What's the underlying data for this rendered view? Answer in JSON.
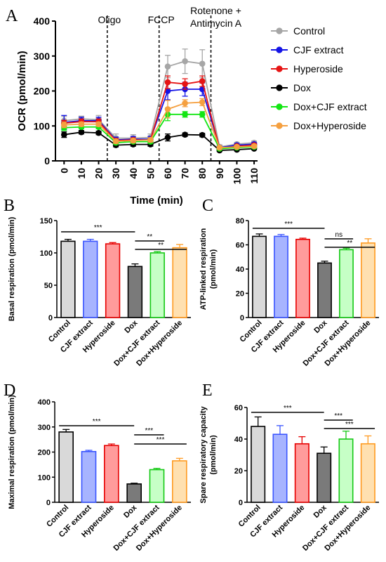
{
  "colors": {
    "Control": "#a6a6a6",
    "CJF extract": "#1414e6",
    "Hyperoside": "#e61414",
    "Dox": "#000000",
    "Dox+CJF extract": "#14e614",
    "Dox+Hyperoside": "#f5a040"
  },
  "bar_colors": {
    "fill": [
      "#d9d9d9",
      "#a7b4ff",
      "#ff9b9b",
      "#7a7a7a",
      "#c6ffc6",
      "#ffe0b0"
    ],
    "edge": [
      "#000000",
      "#3a55ff",
      "#e60000",
      "#000000",
      "#14c814",
      "#ff9a20"
    ]
  },
  "chart_data": [
    {
      "panel": "A",
      "type": "line",
      "xlabel": "Time (min)",
      "ylabel": "OCR (pmol/min)",
      "x": [
        0,
        10,
        20,
        30,
        40,
        50,
        60,
        70,
        80,
        90,
        100,
        110
      ],
      "xticks": [
        "0",
        "10",
        "20",
        "30",
        "40",
        "50",
        "60",
        "70",
        "80",
        "90",
        "100",
        "110"
      ],
      "ylim": [
        0,
        400
      ],
      "yticks": [
        "0",
        "100",
        "200",
        "300",
        "400"
      ],
      "annotations": [
        {
          "text": "Oligo",
          "x": 25
        },
        {
          "text": "FCCP",
          "x": 55
        },
        {
          "text": "Rotenone +",
          "x": 85
        },
        {
          "text": "Antimycin A",
          "x": 85
        }
      ],
      "legend_position": "right",
      "series": [
        {
          "name": "Control",
          "values": [
            115,
            120,
            118,
            65,
            65,
            67,
            270,
            285,
            278,
            40,
            48,
            52
          ],
          "errors": [
            12,
            8,
            12,
            12,
            10,
            10,
            32,
            35,
            40,
            6,
            5,
            5
          ]
        },
        {
          "name": "CJF extract",
          "values": [
            110,
            115,
            115,
            60,
            62,
            62,
            200,
            205,
            205,
            38,
            45,
            48
          ],
          "errors": [
            20,
            10,
            10,
            8,
            8,
            8,
            25,
            20,
            18,
            5,
            4,
            4
          ]
        },
        {
          "name": "Hyperoside",
          "values": [
            108,
            112,
            112,
            58,
            60,
            60,
            225,
            220,
            228,
            35,
            42,
            45
          ],
          "errors": [
            8,
            8,
            8,
            6,
            6,
            6,
            18,
            15,
            15,
            4,
            4,
            4
          ]
        },
        {
          "name": "Dox",
          "values": [
            75,
            82,
            80,
            45,
            47,
            47,
            67,
            75,
            74,
            30,
            32,
            35
          ],
          "errors": [
            8,
            5,
            5,
            5,
            5,
            5,
            10,
            5,
            5,
            3,
            3,
            3
          ]
        },
        {
          "name": "Dox+CJF extract",
          "values": [
            95,
            97,
            97,
            52,
            55,
            55,
            133,
            133,
            133,
            35,
            38,
            40
          ],
          "errors": [
            8,
            5,
            5,
            5,
            5,
            5,
            18,
            8,
            8,
            4,
            4,
            4
          ]
        },
        {
          "name": "Dox+Hyperoside",
          "values": [
            103,
            105,
            105,
            56,
            58,
            60,
            148,
            165,
            168,
            38,
            40,
            42
          ],
          "errors": [
            8,
            6,
            6,
            6,
            6,
            6,
            25,
            10,
            10,
            4,
            4,
            4
          ]
        }
      ]
    },
    {
      "panel": "B",
      "type": "bar",
      "ylabel": "Basal respiration (pmol/min)",
      "categories": [
        "Control",
        "CJF extract",
        "Hyperoside",
        "Dox",
        "Dox+CJF extract",
        "Dox+Hyperoside"
      ],
      "values": [
        118,
        118,
        114,
        79,
        100,
        108
      ],
      "errors": [
        3,
        3,
        2,
        4,
        2,
        5
      ],
      "ylim": [
        0,
        150
      ],
      "yticks": [
        "0",
        "50",
        "100",
        "150"
      ],
      "significance": [
        {
          "from": 0,
          "to": 3,
          "label": "***"
        },
        {
          "from": 3,
          "to": 4,
          "label": "**"
        },
        {
          "from": 3,
          "to": 5,
          "label": "**"
        }
      ]
    },
    {
      "panel": "C",
      "type": "bar",
      "ylabel": "ATP-linked respiration (pmol/min)",
      "ylabel_lines": [
        "ATP-linked respiration",
        "(pmol/min)"
      ],
      "categories": [
        "Control",
        "CJF extract",
        "Hyperoside",
        "Dox",
        "Dox+CJF extract",
        "Dox+Hyperoside"
      ],
      "values": [
        67,
        67,
        64.5,
        45,
        56,
        61.5
      ],
      "errors": [
        2,
        1.5,
        1,
        1.5,
        1.2,
        3.5
      ],
      "ylim": [
        0,
        80
      ],
      "yticks": [
        "0",
        "20",
        "40",
        "60",
        "80"
      ],
      "significance": [
        {
          "from": 0,
          "to": 3,
          "label": "***"
        },
        {
          "from": 3,
          "to": 4,
          "label": "ns"
        },
        {
          "from": 3,
          "to": 5,
          "label": "**"
        }
      ]
    },
    {
      "panel": "D",
      "type": "bar",
      "ylabel": "Maximal respiration (pmol/min)",
      "categories": [
        "Control",
        "CJF extract",
        "Hyperoside",
        "Dox",
        "Dox+CJF extract",
        "Dox+Hyperoside"
      ],
      "values": [
        280,
        202,
        226,
        73,
        130,
        165
      ],
      "errors": [
        10,
        5,
        6,
        3,
        5,
        10
      ],
      "ylim": [
        0,
        400
      ],
      "yticks": [
        "0",
        "100",
        "200",
        "300",
        "400"
      ],
      "significance": [
        {
          "from": 0,
          "to": 3,
          "label": "***"
        },
        {
          "from": 3,
          "to": 4,
          "label": "***"
        },
        {
          "from": 3,
          "to": 5,
          "label": "***"
        }
      ]
    },
    {
      "panel": "E",
      "type": "bar",
      "ylabel": "Spare respiratory capacity (pmol/min)",
      "ylabel_lines": [
        "Spare respiratory capacity",
        "(pmol/min)"
      ],
      "categories": [
        "Control",
        "CJF extract",
        "Hyperoside",
        "Dox",
        "Dox+CJF extract",
        "Dox+Hyperoside"
      ],
      "values": [
        48,
        43,
        37,
        31,
        40,
        37
      ],
      "errors": [
        6,
        5.5,
        4.5,
        4,
        5,
        5
      ],
      "ylim": [
        0,
        60
      ],
      "yticks": [
        "0",
        "20",
        "40",
        "60"
      ],
      "significance": [
        {
          "from": 0,
          "to": 3,
          "label": "***"
        },
        {
          "from": 3,
          "to": 4,
          "label": "***"
        },
        {
          "from": 3,
          "to": 5,
          "label": "***"
        }
      ]
    }
  ]
}
